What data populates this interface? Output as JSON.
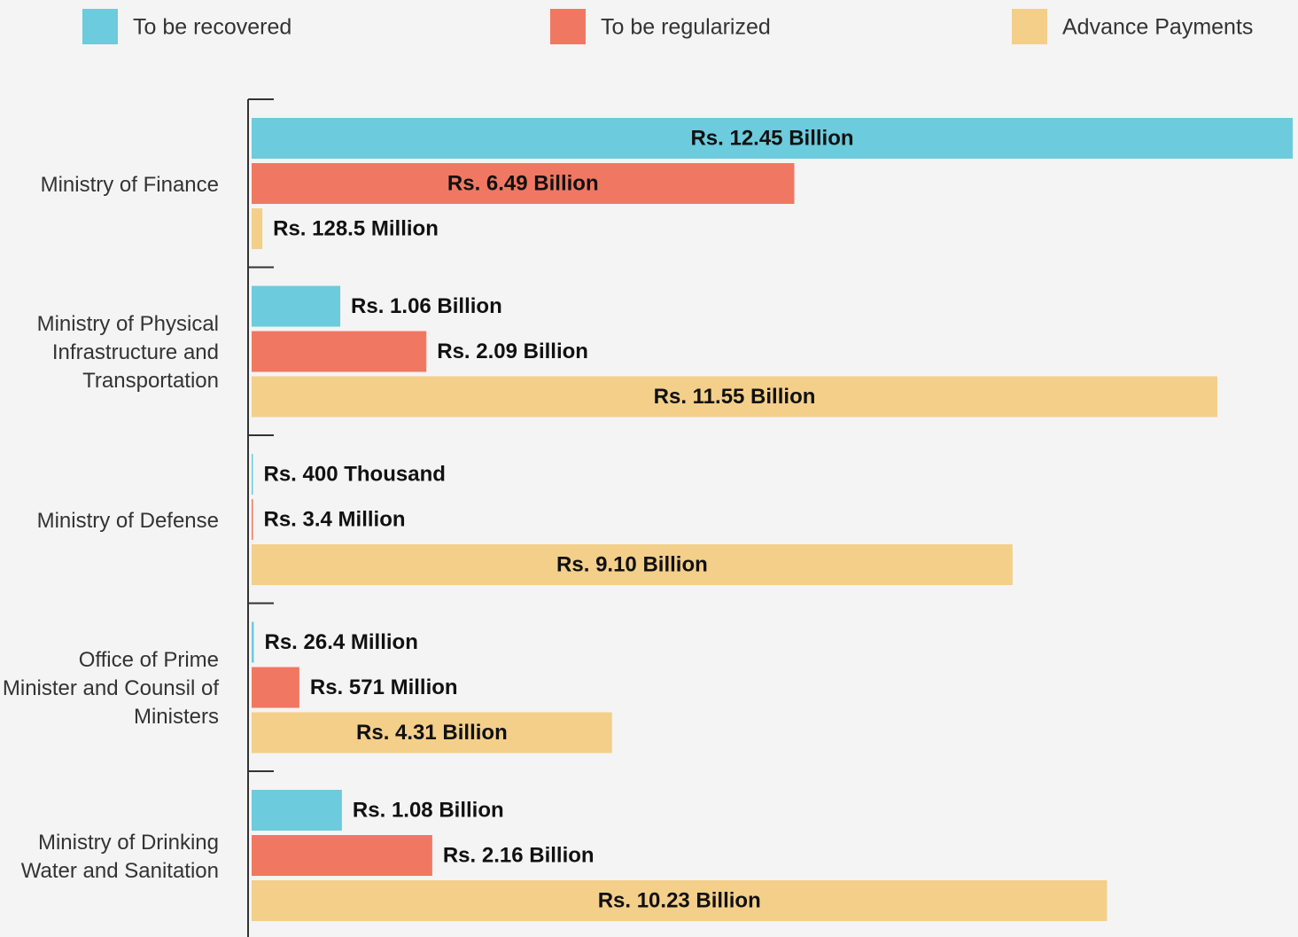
{
  "chart_data": {
    "type": "bar",
    "orientation": "horizontal",
    "categories": [
      "Ministry of Finance",
      "Ministry of Physical Infrastructure and Transportation",
      "Ministry of Defense",
      "Office of Prime Minister and Counsil of Ministers",
      "Ministry of Drinking Water and Sanitation"
    ],
    "series": [
      {
        "name": "To be recovered",
        "color": "#6ccbdc",
        "values": [
          12.45,
          1.06,
          0.0004,
          0.0264,
          1.08
        ],
        "value_labels": [
          "Rs. 12.45 Billion",
          "Rs. 1.06 Billion",
          "Rs. 400 Thousand",
          "Rs. 26.4 Million",
          "Rs. 1.08 Billion"
        ]
      },
      {
        "name": "To be regularized",
        "color": "#f07862",
        "values": [
          6.49,
          2.09,
          0.0034,
          0.571,
          2.16
        ],
        "value_labels": [
          "Rs. 6.49 Billion",
          "Rs. 2.09 Billion",
          "Rs. 3.4 Million",
          "Rs. 571 Million",
          "Rs. 2.16 Billion"
        ]
      },
      {
        "name": "Advance Payments",
        "color": "#f3cf8a",
        "values": [
          0.1285,
          11.55,
          9.1,
          4.31,
          10.23
        ],
        "value_labels": [
          "Rs. 128.5 Million",
          "Rs. 11.55 Billion",
          "Rs. 9.10 Billion",
          "Rs. 4.31 Billion",
          "Rs. 10.23 Billion"
        ]
      }
    ],
    "xlim": [
      0,
      12.45
    ]
  }
}
